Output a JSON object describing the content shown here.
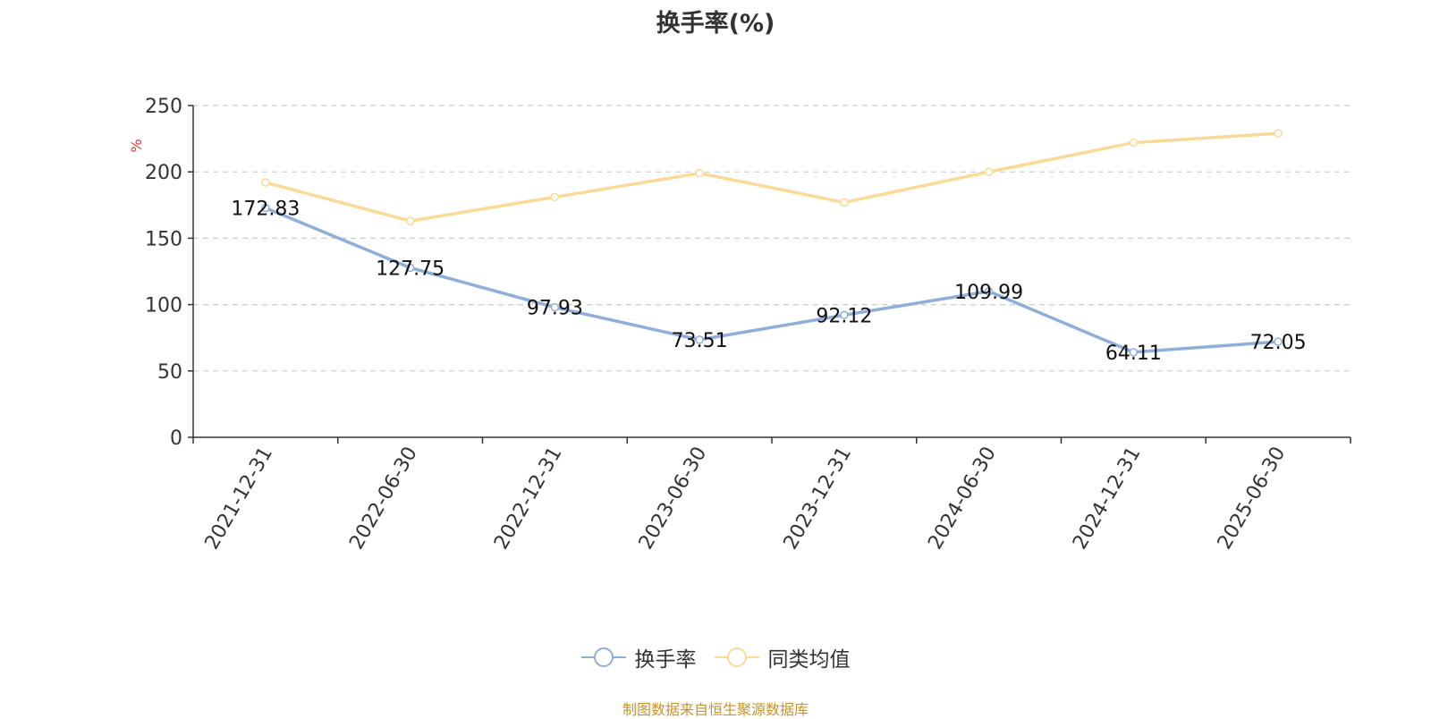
{
  "chart_data": {
    "type": "line",
    "title": "换手率(%)",
    "ylabel": "%",
    "xlabel": "",
    "categories": [
      "2021-12-31",
      "2022-06-30",
      "2022-12-31",
      "2023-06-30",
      "2023-12-31",
      "2024-06-30",
      "2024-12-31",
      "2025-06-30"
    ],
    "ylim": [
      0,
      250
    ],
    "yticks": [
      0,
      50,
      100,
      150,
      200,
      250
    ],
    "grid": true,
    "legend_placement": "bottom",
    "series": [
      {
        "name": "换手率",
        "color": "#8eaedb",
        "values": [
          172.83,
          127.75,
          97.93,
          73.51,
          92.12,
          109.99,
          64.11,
          72.05
        ],
        "value_labels": [
          "172.83",
          "127.75",
          "97.93",
          "73.51",
          "92.12",
          "109.99",
          "64.11",
          "72.05"
        ]
      },
      {
        "name": "同类均值",
        "color": "#fbd996",
        "values": [
          192,
          163,
          181,
          199,
          177,
          200,
          222,
          229
        ]
      }
    ]
  },
  "footer": {
    "source": "制图数据来自恒生聚源数据库"
  }
}
